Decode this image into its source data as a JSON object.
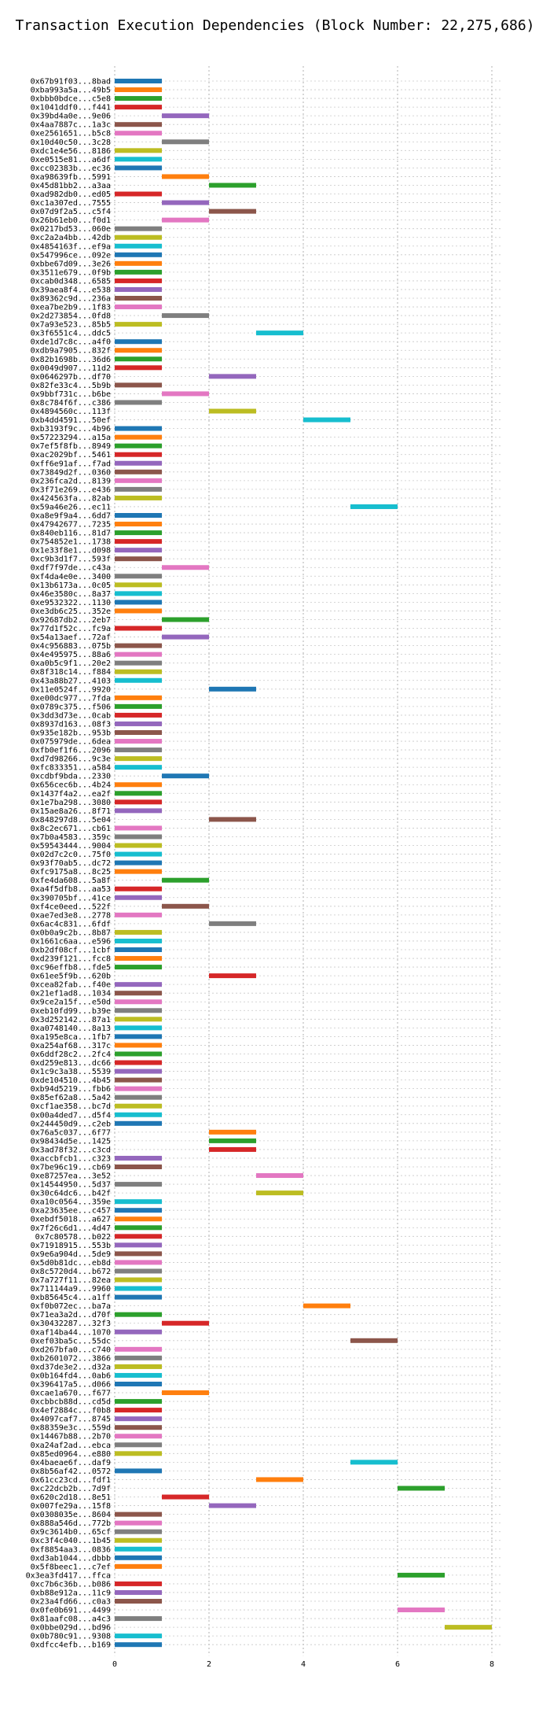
{
  "chart_data": {
    "type": "bar",
    "orientation": "horizontal",
    "title": "Transaction Execution Dependencies (Block Number: 22,275,686)",
    "xlabel": "",
    "ylabel": "",
    "xlim": [
      0,
      8.5
    ],
    "xticks": [
      0,
      2,
      4,
      6,
      8
    ],
    "grid": "dotted",
    "palette": [
      "#1f77b4",
      "#ff7f0e",
      "#2ca02c",
      "#d62728",
      "#9467bd",
      "#8c564b",
      "#e377c2",
      "#7f7f7f",
      "#bcbd22",
      "#17becf"
    ],
    "bars": [
      {
        "label": "0x67b91f03...8bad",
        "start": 0,
        "end": 1
      },
      {
        "label": "0xba993a5a...49b5",
        "start": 0,
        "end": 1
      },
      {
        "label": "0xbbb0bdce...c5e8",
        "start": 0,
        "end": 1
      },
      {
        "label": "0x1041ddf0...f441",
        "start": 0,
        "end": 1
      },
      {
        "label": "0x39bd4a0e...9e06",
        "start": 1,
        "end": 2
      },
      {
        "label": "0x4aa7887c...1a3c",
        "start": 0,
        "end": 1
      },
      {
        "label": "0xe2561651...b5c8",
        "start": 0,
        "end": 1
      },
      {
        "label": "0x10d40c50...3c28",
        "start": 1,
        "end": 2
      },
      {
        "label": "0xdc1e4e56...8186",
        "start": 0,
        "end": 1
      },
      {
        "label": "0xe0515e81...a6df",
        "start": 0,
        "end": 1
      },
      {
        "label": "0xcc02383b...ec36",
        "start": 0,
        "end": 1
      },
      {
        "label": "0xa98639fb...5991",
        "start": 1,
        "end": 2
      },
      {
        "label": "0x45d81bb2...a3aa",
        "start": 2,
        "end": 3
      },
      {
        "label": "0xad982db0...ed05",
        "start": 0,
        "end": 1
      },
      {
        "label": "0xc1a307ed...7555",
        "start": 1,
        "end": 2
      },
      {
        "label": "0x07d9f2a5...c5f4",
        "start": 2,
        "end": 3
      },
      {
        "label": "0x26b61eb0...f0d1",
        "start": 1,
        "end": 2
      },
      {
        "label": "0x0217bd53...060e",
        "start": 0,
        "end": 1
      },
      {
        "label": "0xc2a2a4bb...42db",
        "start": 0,
        "end": 1
      },
      {
        "label": "0x4854163f...ef9a",
        "start": 0,
        "end": 1
      },
      {
        "label": "0x547996ce...092e",
        "start": 0,
        "end": 1
      },
      {
        "label": "0xbbe67d09...3e26",
        "start": 0,
        "end": 1
      },
      {
        "label": "0x3511e679...0f9b",
        "start": 0,
        "end": 1
      },
      {
        "label": "0xcab0d348...6585",
        "start": 0,
        "end": 1
      },
      {
        "label": "0x39aea8f4...e538",
        "start": 0,
        "end": 1
      },
      {
        "label": "0x89362c9d...236a",
        "start": 0,
        "end": 1
      },
      {
        "label": "0xea7be2b9...1f83",
        "start": 0,
        "end": 1
      },
      {
        "label": "0x2d273854...0fd8",
        "start": 1,
        "end": 2
      },
      {
        "label": "0x7a93e523...85b5",
        "start": 0,
        "end": 1
      },
      {
        "label": "0x3f6551c4...ddc5",
        "start": 3,
        "end": 4
      },
      {
        "label": "0xde1d7c8c...a4f0",
        "start": 0,
        "end": 1
      },
      {
        "label": "0xdb9a7905...832f",
        "start": 0,
        "end": 1
      },
      {
        "label": "0x82b1698b...36d6",
        "start": 0,
        "end": 1
      },
      {
        "label": "0x0049d907...11d2",
        "start": 0,
        "end": 1
      },
      {
        "label": "0x0646297b...df70",
        "start": 2,
        "end": 3
      },
      {
        "label": "0x82fe33c4...5b9b",
        "start": 0,
        "end": 1
      },
      {
        "label": "0x9bbf731c...b6be",
        "start": 1,
        "end": 2
      },
      {
        "label": "0x8c784f6f...c386",
        "start": 0,
        "end": 1
      },
      {
        "label": "0x4894560c...113f",
        "start": 2,
        "end": 3
      },
      {
        "label": "0xb4dd4591...50ef",
        "start": 4,
        "end": 5
      },
      {
        "label": "0xb3193f9c...4b96",
        "start": 0,
        "end": 1
      },
      {
        "label": "0x57223294...a15a",
        "start": 0,
        "end": 1
      },
      {
        "label": "0x7ef5f8fb...8949",
        "start": 0,
        "end": 1
      },
      {
        "label": "0xac2029bf...5461",
        "start": 0,
        "end": 1
      },
      {
        "label": "0xff6e91af...f7ad",
        "start": 0,
        "end": 1
      },
      {
        "label": "0x73849d2f...0360",
        "start": 0,
        "end": 1
      },
      {
        "label": "0x236fca2d...8139",
        "start": 0,
        "end": 1
      },
      {
        "label": "0x3f71e269...e436",
        "start": 0,
        "end": 1
      },
      {
        "label": "0x424563fa...82ab",
        "start": 0,
        "end": 1
      },
      {
        "label": "0x59a46e26...ec11",
        "start": 5,
        "end": 6
      },
      {
        "label": "0xa8e9f9a4...6dd7",
        "start": 0,
        "end": 1
      },
      {
        "label": "0x47942677...7235",
        "start": 0,
        "end": 1
      },
      {
        "label": "0x840eb116...81d7",
        "start": 0,
        "end": 1
      },
      {
        "label": "0x754852e1...1738",
        "start": 0,
        "end": 1
      },
      {
        "label": "0x1e33f8e1...d098",
        "start": 0,
        "end": 1
      },
      {
        "label": "0xc9b3d1f7...593f",
        "start": 0,
        "end": 1
      },
      {
        "label": "0xdf7f97de...c43a",
        "start": 1,
        "end": 2
      },
      {
        "label": "0xf4da4e0e...3400",
        "start": 0,
        "end": 1
      },
      {
        "label": "0x13b6173a...0c05",
        "start": 0,
        "end": 1
      },
      {
        "label": "0x46e3580c...8a37",
        "start": 0,
        "end": 1
      },
      {
        "label": "0xe9532322...1130",
        "start": 0,
        "end": 1
      },
      {
        "label": "0xe3db6c25...352e",
        "start": 0,
        "end": 1
      },
      {
        "label": "0x92687db2...2eb7",
        "start": 1,
        "end": 2
      },
      {
        "label": "0x77d1f52c...fc9a",
        "start": 0,
        "end": 1
      },
      {
        "label": "0x54a13aef...72af",
        "start": 1,
        "end": 2
      },
      {
        "label": "0x4c956883...075b",
        "start": 0,
        "end": 1
      },
      {
        "label": "0x4e495975...88a6",
        "start": 0,
        "end": 1
      },
      {
        "label": "0xa0b5c9f1...20e2",
        "start": 0,
        "end": 1
      },
      {
        "label": "0x8f318c14...f884",
        "start": 0,
        "end": 1
      },
      {
        "label": "0x43a88b27...4103",
        "start": 0,
        "end": 1
      },
      {
        "label": "0x11e0524f...9920",
        "start": 2,
        "end": 3
      },
      {
        "label": "0xe00dc977...7fda",
        "start": 0,
        "end": 1
      },
      {
        "label": "0x0789c375...f506",
        "start": 0,
        "end": 1
      },
      {
        "label": "0x3dd3d73e...0cab",
        "start": 0,
        "end": 1
      },
      {
        "label": "0x8937d163...08f3",
        "start": 0,
        "end": 1
      },
      {
        "label": "0x935e182b...953b",
        "start": 0,
        "end": 1
      },
      {
        "label": "0x075979de...6dea",
        "start": 0,
        "end": 1
      },
      {
        "label": "0xfb0ef1f6...2096",
        "start": 0,
        "end": 1
      },
      {
        "label": "0xd7d98266...9c3e",
        "start": 0,
        "end": 1
      },
      {
        "label": "0xfc833351...a584",
        "start": 0,
        "end": 1
      },
      {
        "label": "0xcdbf9bda...2330",
        "start": 1,
        "end": 2
      },
      {
        "label": "0x656cec6b...4b24",
        "start": 0,
        "end": 1
      },
      {
        "label": "0x1437f4a2...ea2f",
        "start": 0,
        "end": 1
      },
      {
        "label": "0x1e7ba298...3080",
        "start": 0,
        "end": 1
      },
      {
        "label": "0x15ae8a26...8f71",
        "start": 0,
        "end": 1
      },
      {
        "label": "0x848297d8...5e04",
        "start": 2,
        "end": 3
      },
      {
        "label": "0x8c2ec671...cb61",
        "start": 0,
        "end": 1
      },
      {
        "label": "0x7b0a4583...359c",
        "start": 0,
        "end": 1
      },
      {
        "label": "0x59543444...9004",
        "start": 0,
        "end": 1
      },
      {
        "label": "0x02d7c2c0...75f0",
        "start": 0,
        "end": 1
      },
      {
        "label": "0x93f70ab5...dc72",
        "start": 0,
        "end": 1
      },
      {
        "label": "0xfc9175a8...8c25",
        "start": 0,
        "end": 1
      },
      {
        "label": "0xfe4da608...5a8f",
        "start": 1,
        "end": 2
      },
      {
        "label": "0xa4f5dfb8...aa53",
        "start": 0,
        "end": 1
      },
      {
        "label": "0x390705bf...41ce",
        "start": 0,
        "end": 1
      },
      {
        "label": "0xf4ce0eed...522f",
        "start": 1,
        "end": 2
      },
      {
        "label": "0xae7ed3e8...2778",
        "start": 0,
        "end": 1
      },
      {
        "label": "0x6ac4c831...6fdf",
        "start": 2,
        "end": 3
      },
      {
        "label": "0x0b0a9c2b...8b87",
        "start": 0,
        "end": 1
      },
      {
        "label": "0x1661c6aa...e596",
        "start": 0,
        "end": 1
      },
      {
        "label": "0xb2df08cf...1cbf",
        "start": 0,
        "end": 1
      },
      {
        "label": "0xd239f121...fcc8",
        "start": 0,
        "end": 1
      },
      {
        "label": "0xc96effb8...fde5",
        "start": 0,
        "end": 1
      },
      {
        "label": "0x61ee5f9b...620b",
        "start": 2,
        "end": 3
      },
      {
        "label": "0xcea82fab...f40e",
        "start": 0,
        "end": 1
      },
      {
        "label": "0x21ef1ad8...1034",
        "start": 0,
        "end": 1
      },
      {
        "label": "0x9ce2a15f...e50d",
        "start": 0,
        "end": 1
      },
      {
        "label": "0xeb10fd99...b39e",
        "start": 0,
        "end": 1
      },
      {
        "label": "0x3d252142...87a1",
        "start": 0,
        "end": 1
      },
      {
        "label": "0xa0748140...8a13",
        "start": 0,
        "end": 1
      },
      {
        "label": "0xa195e8ca...1fb7",
        "start": 0,
        "end": 1
      },
      {
        "label": "0xa254af68...317c",
        "start": 0,
        "end": 1
      },
      {
        "label": "0x6ddf28c2...2fc4",
        "start": 0,
        "end": 1
      },
      {
        "label": "0xd259e813...dc66",
        "start": 0,
        "end": 1
      },
      {
        "label": "0x1c9c3a38...5539",
        "start": 0,
        "end": 1
      },
      {
        "label": "0xde104510...4b45",
        "start": 0,
        "end": 1
      },
      {
        "label": "0xb94d5219...fbb6",
        "start": 0,
        "end": 1
      },
      {
        "label": "0x85ef62a8...5a42",
        "start": 0,
        "end": 1
      },
      {
        "label": "0xcf1ae358...bc7d",
        "start": 0,
        "end": 1
      },
      {
        "label": "0x00a4ded7...d5f4",
        "start": 0,
        "end": 1
      },
      {
        "label": "0x244450d9...c2eb",
        "start": 0,
        "end": 1
      },
      {
        "label": "0x76a5c037...6f77",
        "start": 2,
        "end": 3
      },
      {
        "label": "0x98434d5e...1425",
        "start": 2,
        "end": 3
      },
      {
        "label": "0x3ad78f32...c3cd",
        "start": 2,
        "end": 3
      },
      {
        "label": "0xaccbfcb1...c323",
        "start": 0,
        "end": 1
      },
      {
        "label": "0x7be96c19...cb69",
        "start": 0,
        "end": 1
      },
      {
        "label": "0xe87257ea...3e52",
        "start": 3,
        "end": 4
      },
      {
        "label": "0x14544950...5d37",
        "start": 0,
        "end": 1
      },
      {
        "label": "0x30c64dc6...b42f",
        "start": 3,
        "end": 4
      },
      {
        "label": "0xa10c0564...359e",
        "start": 0,
        "end": 1
      },
      {
        "label": "0xa23635ee...c457",
        "start": 0,
        "end": 1
      },
      {
        "label": "0xebdf5018...a627",
        "start": 0,
        "end": 1
      },
      {
        "label": "0x7f26c6d1...4d47",
        "start": 0,
        "end": 1
      },
      {
        "label": "0x7c80578...b022",
        "start": 0,
        "end": 1
      },
      {
        "label": "0x71918915...553b",
        "start": 0,
        "end": 1
      },
      {
        "label": "0x9e6a904d...5de9",
        "start": 0,
        "end": 1
      },
      {
        "label": "0x5d0b81dc...eb8d",
        "start": 0,
        "end": 1
      },
      {
        "label": "0x8c5720d4...b672",
        "start": 0,
        "end": 1
      },
      {
        "label": "0x7a727f11...82ea",
        "start": 0,
        "end": 1
      },
      {
        "label": "0x711144a9...9960",
        "start": 0,
        "end": 1
      },
      {
        "label": "0xb85645c4...a1ff",
        "start": 0,
        "end": 1
      },
      {
        "label": "0xf0b072ec...ba7a",
        "start": 4,
        "end": 5
      },
      {
        "label": "0x71ea3a2d...d70f",
        "start": 0,
        "end": 1
      },
      {
        "label": "0x30432287...32f3",
        "start": 1,
        "end": 2
      },
      {
        "label": "0xaf14ba44...1070",
        "start": 0,
        "end": 1
      },
      {
        "label": "0xef03ba5c...55dc",
        "start": 5,
        "end": 6
      },
      {
        "label": "0xd267bfa0...c740",
        "start": 0,
        "end": 1
      },
      {
        "label": "0xb2601072...3866",
        "start": 0,
        "end": 1
      },
      {
        "label": "0xd37de3e2...d32a",
        "start": 0,
        "end": 1
      },
      {
        "label": "0x0b164fd4...0ab6",
        "start": 0,
        "end": 1
      },
      {
        "label": "0x396417a5...d066",
        "start": 0,
        "end": 1
      },
      {
        "label": "0xcae1a670...f677",
        "start": 1,
        "end": 2
      },
      {
        "label": "0xcbbcb88d...cd5d",
        "start": 0,
        "end": 1
      },
      {
        "label": "0x4ef2884c...f0b8",
        "start": 0,
        "end": 1
      },
      {
        "label": "0x4097caf7...8745",
        "start": 0,
        "end": 1
      },
      {
        "label": "0x88359e3c...559d",
        "start": 0,
        "end": 1
      },
      {
        "label": "0x14467b88...2b70",
        "start": 0,
        "end": 1
      },
      {
        "label": "0xa24af2ad...ebca",
        "start": 0,
        "end": 1
      },
      {
        "label": "0x85ed0964...e880",
        "start": 0,
        "end": 1
      },
      {
        "label": "0x4baeae6f...daf9",
        "start": 5,
        "end": 6
      },
      {
        "label": "0x8b56af42...0572",
        "start": 0,
        "end": 1
      },
      {
        "label": "0x61cc23cd...fdf1",
        "start": 3,
        "end": 4
      },
      {
        "label": "0xc22dcb2b...7d9f",
        "start": 6,
        "end": 7
      },
      {
        "label": "0x620c2d18...8e51",
        "start": 1,
        "end": 2
      },
      {
        "label": "0x007fe29a...15f8",
        "start": 2,
        "end": 3
      },
      {
        "label": "0x0308035e...8604",
        "start": 0,
        "end": 1
      },
      {
        "label": "0x888a546d...772b",
        "start": 0,
        "end": 1
      },
      {
        "label": "0x9c3614b0...65cf",
        "start": 0,
        "end": 1
      },
      {
        "label": "0xc3f4c040...1b45",
        "start": 0,
        "end": 1
      },
      {
        "label": "0xf8854aa3...0836",
        "start": 0,
        "end": 1
      },
      {
        "label": "0xd3ab1044...dbbb",
        "start": 0,
        "end": 1
      },
      {
        "label": "0x5f8beec1...c7ef",
        "start": 0,
        "end": 1
      },
      {
        "label": "0x3ea3fd417...ffca",
        "start": 6,
        "end": 7
      },
      {
        "label": "0xc7b6c36b...b086",
        "start": 0,
        "end": 1
      },
      {
        "label": "0xb88e912a...11c9",
        "start": 0,
        "end": 1
      },
      {
        "label": "0x23a4fd66...c0a3",
        "start": 0,
        "end": 1
      },
      {
        "label": "0x0fe0b691...4499",
        "start": 6,
        "end": 7
      },
      {
        "label": "0x81aafc08...a4c3",
        "start": 0,
        "end": 1
      },
      {
        "label": "0x0bbe029d...bd96",
        "start": 7,
        "end": 8
      },
      {
        "label": "0x0b780c91...9308",
        "start": 0,
        "end": 1
      },
      {
        "label": "0xdfcc4efb...b169",
        "start": 0,
        "end": 1
      }
    ]
  }
}
